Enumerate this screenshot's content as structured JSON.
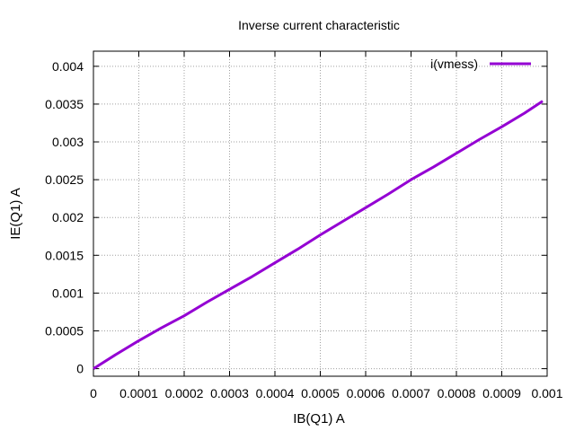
{
  "chart_data": {
    "type": "line",
    "title": "Inverse current characteristic",
    "xlabel": "IB(Q1) A",
    "ylabel": "IE(Q1) A",
    "xlim": [
      0,
      0.001
    ],
    "ylim": [
      -0.0001,
      0.0042
    ],
    "x_ticks": [
      0,
      0.0001,
      0.0002,
      0.0003,
      0.0004,
      0.0005,
      0.0006,
      0.0007,
      0.0008,
      0.0009,
      0.001
    ],
    "x_tick_labels": [
      "0",
      "0.0001",
      "0.0002",
      "0.0003",
      "0.0004",
      "0.0005",
      "0.0006",
      "0.0007",
      "0.0008",
      "0.0009",
      "0.001"
    ],
    "y_ticks": [
      0,
      0.0005,
      0.001,
      0.0015,
      0.002,
      0.0025,
      0.003,
      0.0035,
      0.004
    ],
    "y_tick_labels": [
      "0",
      "0.0005",
      "0.001",
      "0.0015",
      "0.002",
      "0.0025",
      "0.003",
      "0.0035",
      "0.004"
    ],
    "grid": true,
    "legend_position": "top-right",
    "series": [
      {
        "name": "i(vmess)",
        "color": "#9400d3",
        "x": [
          0,
          5e-05,
          0.0001,
          0.00015,
          0.0002,
          0.00025,
          0.0003,
          0.00035,
          0.0004,
          0.00045,
          0.0005,
          0.00055,
          0.0006,
          0.00065,
          0.0007,
          0.00075,
          0.0008,
          0.00085,
          0.0009,
          0.00095,
          0.00099
        ],
        "y": [
          0,
          0.00019,
          0.00037,
          0.00054,
          0.0007,
          0.00088,
          0.00105,
          0.00122,
          0.0014,
          0.00158,
          0.00177,
          0.00195,
          0.00213,
          0.00231,
          0.0025,
          0.00267,
          0.00285,
          0.00303,
          0.0032,
          0.00338,
          0.00354
        ]
      }
    ]
  }
}
